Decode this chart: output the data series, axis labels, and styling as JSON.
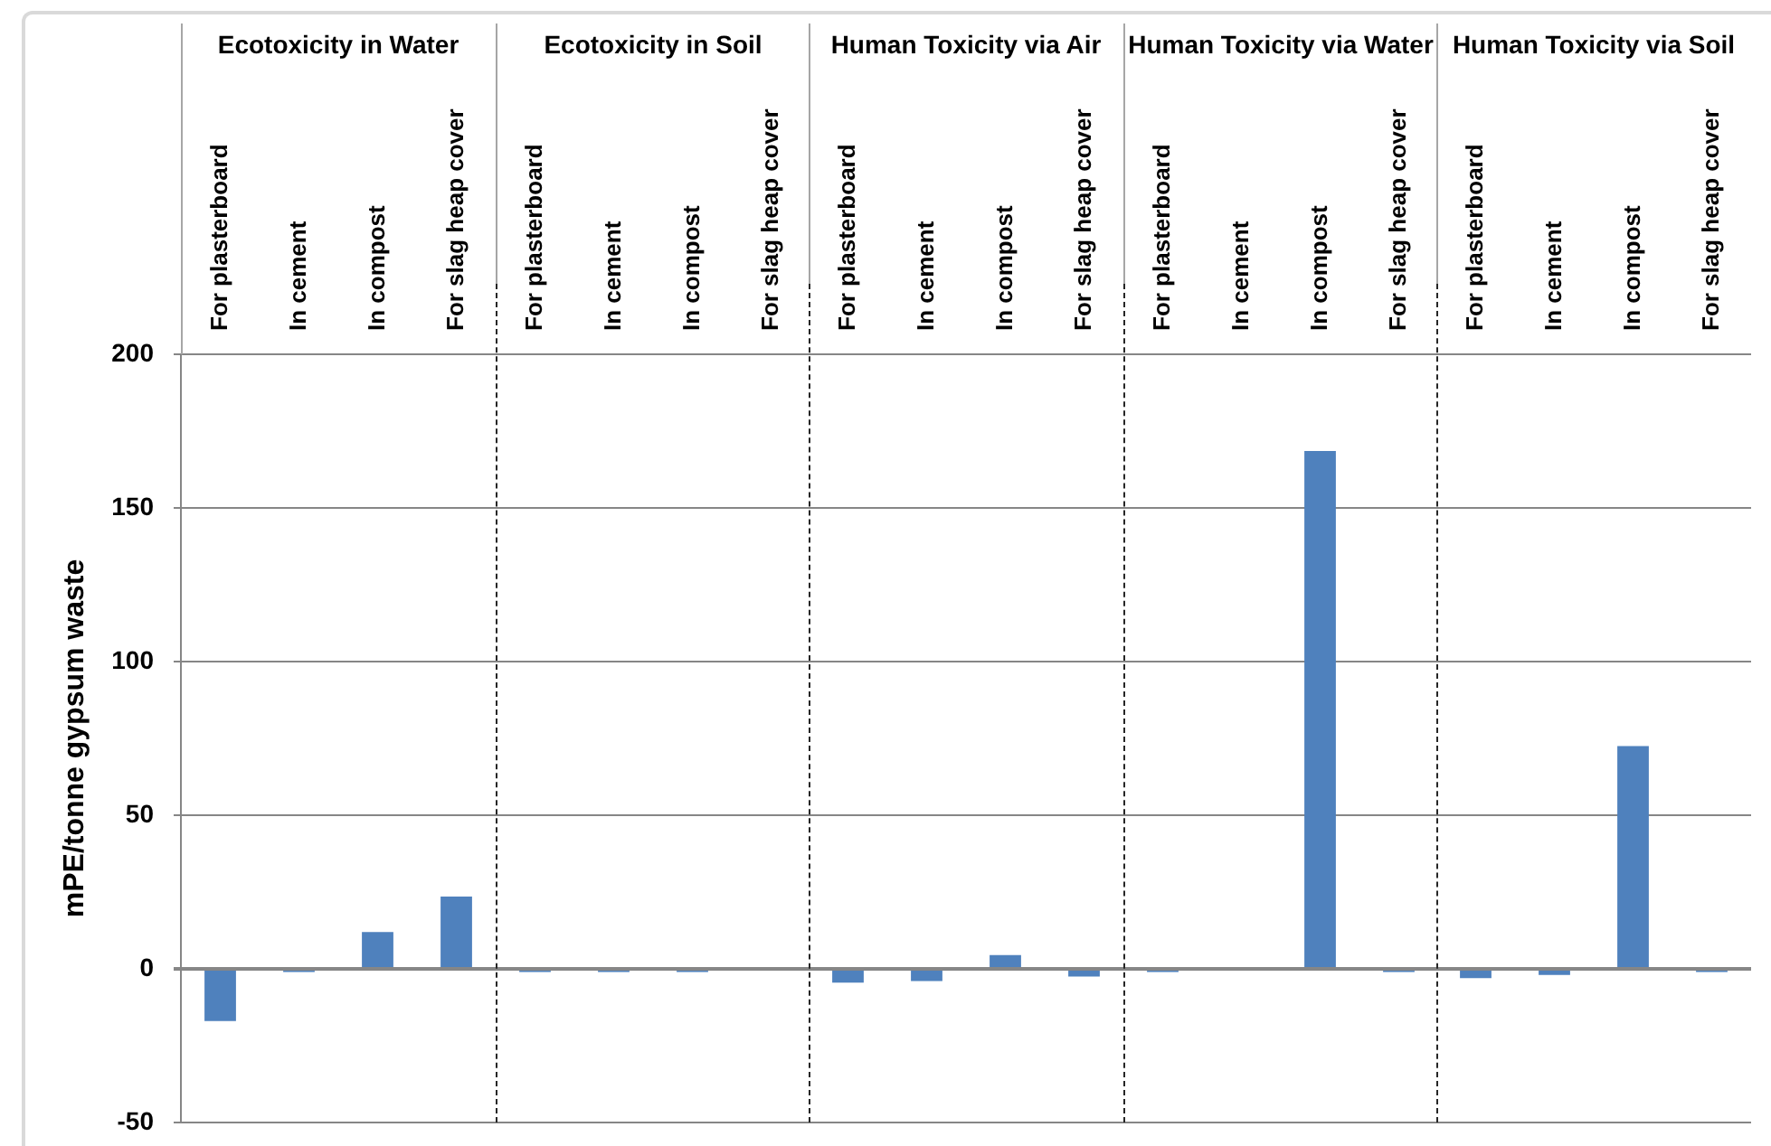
{
  "chart_data": [
    {
      "type": "bar",
      "title": "Ecotoxicity in Water",
      "ylabel": "mPE/tonne gypsum waste",
      "categories": [
        "For plasterboard",
        "In cement",
        "In compost",
        "For slag heap cover"
      ],
      "values": [
        -17,
        -1,
        12,
        23.5
      ],
      "color": "#4f81bd",
      "ylim": [
        -50,
        200
      ],
      "yticks": [
        -50,
        0,
        50,
        100,
        150,
        200
      ],
      "grid": "y"
    },
    {
      "type": "bar",
      "title": "Ecotoxicity in Soil",
      "categories": [
        "For plasterboard",
        "In cement",
        "In compost",
        "For slag heap cover"
      ],
      "values": [
        -1,
        -1,
        -1,
        0
      ],
      "color": "#4f81bd",
      "ylim": [
        -50,
        200
      ],
      "yticks": [
        -50,
        0,
        50,
        100,
        150,
        200
      ],
      "grid": "y",
      "tick_labels": "x"
    },
    {
      "type": "bar",
      "title": "Human Toxicity via Air",
      "categories": [
        "For plasterboard",
        "In cement",
        "In compost",
        "For slag heap cover"
      ],
      "values": [
        -4.5,
        -4,
        4.5,
        -2.5
      ],
      "color": "#4f81bd",
      "ylim": [
        -50,
        200
      ],
      "yticks": [
        -50,
        0,
        50,
        100,
        150,
        200
      ],
      "grid": "y",
      "tick_labels": "x"
    },
    {
      "type": "bar",
      "title": "Human Toxicity via Water",
      "categories": [
        "For plasterboard",
        "In cement",
        "In compost",
        "For slag heap cover"
      ],
      "values": [
        -1,
        0,
        168.5,
        -1
      ],
      "color": "#4f81bd",
      "ylim": [
        -50,
        200
      ],
      "yticks": [
        -50,
        0,
        50,
        100,
        150,
        200
      ],
      "grid": "y",
      "tick_labels": "x"
    },
    {
      "type": "bar",
      "title": "Human Toxicity via Soil",
      "categories": [
        "For plasterboard",
        "In cement",
        "In compost",
        "For slag heap cover"
      ],
      "values": [
        -3,
        -2,
        72.5,
        -1
      ],
      "color": "#4f81bd",
      "ylim": [
        -50,
        200
      ],
      "yticks": [
        -50,
        0,
        50,
        100,
        150,
        200
      ],
      "grid": "y",
      "tick_labels": "x"
    }
  ]
}
